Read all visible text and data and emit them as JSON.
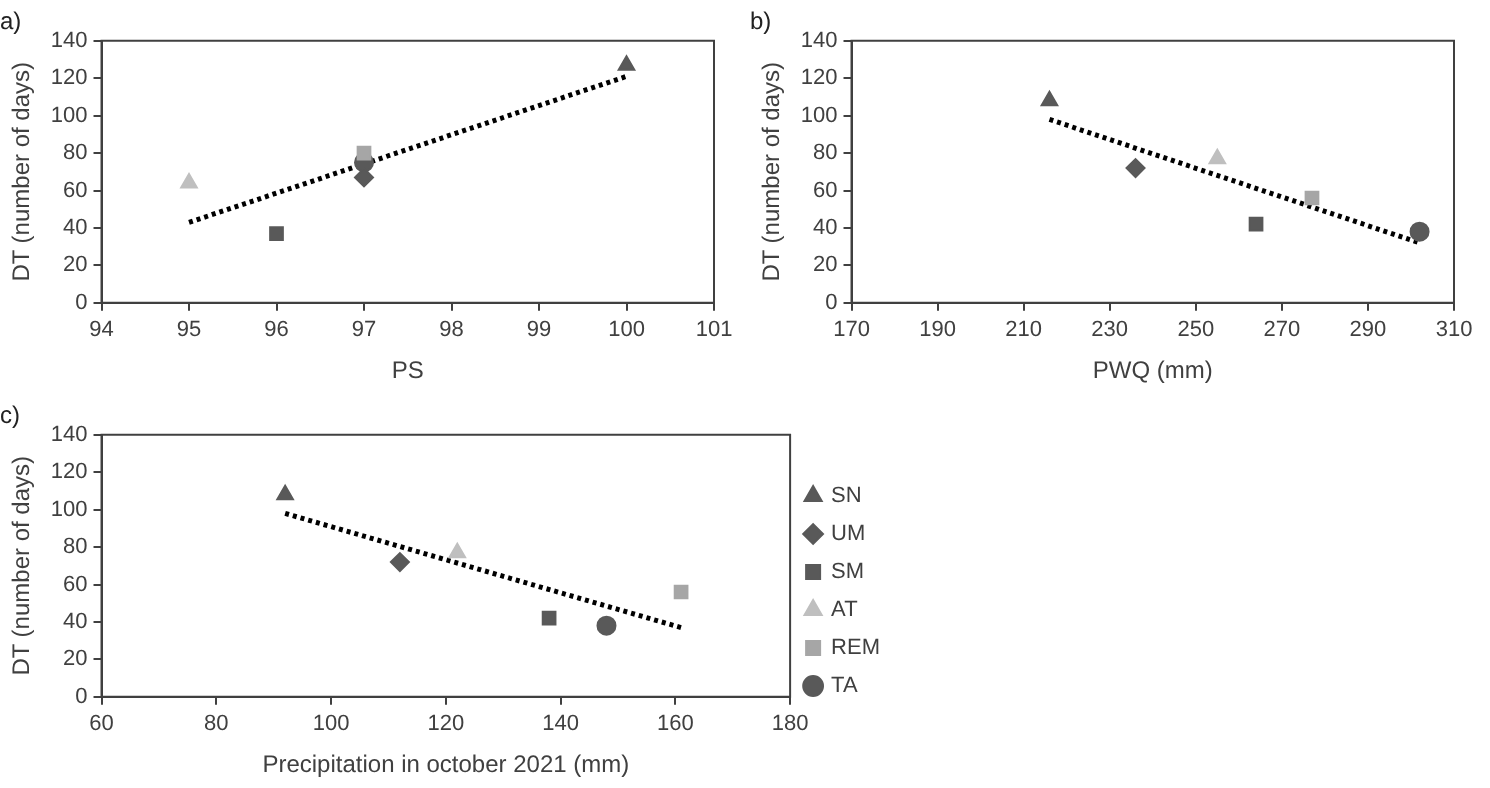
{
  "chart_data": [
    {
      "type": "scatter",
      "title": "a)",
      "xlabel": "PS",
      "ylabel": "DT (number of days)",
      "xlim": [
        94,
        101
      ],
      "xticks": [
        94,
        95,
        96,
        97,
        98,
        99,
        100,
        101
      ],
      "ylim": [
        0,
        140
      ],
      "yticks": [
        0,
        20,
        40,
        60,
        80,
        100,
        120,
        140
      ],
      "grid": false,
      "legend": false,
      "series": [
        {
          "color": "#595959",
          "marker": "triangle",
          "x": [
            100
          ],
          "values": [
            127
          ]
        },
        {
          "color": "#595959",
          "marker": "diamond",
          "x": [
            97
          ],
          "values": [
            67
          ]
        },
        {
          "color": "#595959",
          "marker": "square",
          "x": [
            96
          ],
          "values": [
            37
          ]
        },
        {
          "color": "#bfbfbf",
          "marker": "triangle",
          "x": [
            95
          ],
          "values": [
            64
          ]
        },
        {
          "color": "#a6a6a6",
          "marker": "square",
          "x": [
            97
          ],
          "values": [
            80
          ]
        },
        {
          "color": "#595959",
          "marker": "circle",
          "x": [
            97
          ],
          "values": [
            75
          ]
        },
        {
          "type": "line",
          "color": "#000000",
          "marker": "none",
          "line_style": "dotted",
          "x": [
            95,
            100
          ],
          "values": [
            43,
            121
          ]
        }
      ]
    },
    {
      "type": "scatter",
      "title": "b)",
      "xlabel": "PWQ (mm)",
      "ylabel": "DT (number of days)",
      "xlim": [
        170,
        310
      ],
      "xticks": [
        170,
        190,
        210,
        230,
        250,
        270,
        290,
        310
      ],
      "ylim": [
        0,
        140
      ],
      "yticks": [
        0,
        20,
        40,
        60,
        80,
        100,
        120,
        140
      ],
      "grid": false,
      "legend": false,
      "series": [
        {
          "color": "#595959",
          "marker": "triangle",
          "x": [
            216
          ],
          "values": [
            108
          ]
        },
        {
          "color": "#595959",
          "marker": "diamond",
          "x": [
            236
          ],
          "values": [
            72
          ]
        },
        {
          "color": "#595959",
          "marker": "square",
          "x": [
            264
          ],
          "values": [
            42
          ]
        },
        {
          "color": "#bfbfbf",
          "marker": "triangle",
          "x": [
            255
          ],
          "values": [
            77
          ]
        },
        {
          "color": "#a6a6a6",
          "marker": "square",
          "x": [
            277
          ],
          "values": [
            56
          ]
        },
        {
          "color": "#595959",
          "marker": "circle",
          "x": [
            302
          ],
          "values": [
            38
          ]
        },
        {
          "type": "line",
          "color": "#000000",
          "marker": "none",
          "line_style": "dotted",
          "x": [
            216,
            302
          ],
          "values": [
            98,
            32
          ]
        }
      ]
    },
    {
      "type": "scatter",
      "title": "c)",
      "xlabel": "Precipitation in october 2021 (mm)",
      "ylabel": "DT (number of days)",
      "xlim": [
        60,
        180
      ],
      "xticks": [
        60,
        80,
        100,
        120,
        140,
        160,
        180
      ],
      "ylim": [
        0,
        140
      ],
      "yticks": [
        0,
        20,
        40,
        60,
        80,
        100,
        120,
        140
      ],
      "grid": false,
      "legend": "right",
      "series": [
        {
          "name": "SN",
          "color": "#595959",
          "marker": "triangle",
          "x": [
            92
          ],
          "values": [
            108
          ]
        },
        {
          "name": "UM",
          "color": "#595959",
          "marker": "diamond",
          "x": [
            112
          ],
          "values": [
            72
          ]
        },
        {
          "name": "SM",
          "color": "#595959",
          "marker": "square",
          "x": [
            138
          ],
          "values": [
            42
          ]
        },
        {
          "name": "AT",
          "color": "#bfbfbf",
          "marker": "triangle",
          "x": [
            122
          ],
          "values": [
            77
          ]
        },
        {
          "name": "REM",
          "color": "#a6a6a6",
          "marker": "square",
          "x": [
            161
          ],
          "values": [
            56
          ]
        },
        {
          "name": "TA",
          "color": "#595959",
          "marker": "circle",
          "x": [
            148
          ],
          "values": [
            38
          ]
        },
        {
          "type": "line",
          "color": "#000000",
          "marker": "none",
          "line_style": "dotted",
          "x": [
            92,
            161
          ],
          "values": [
            98,
            37
          ]
        }
      ]
    }
  ]
}
